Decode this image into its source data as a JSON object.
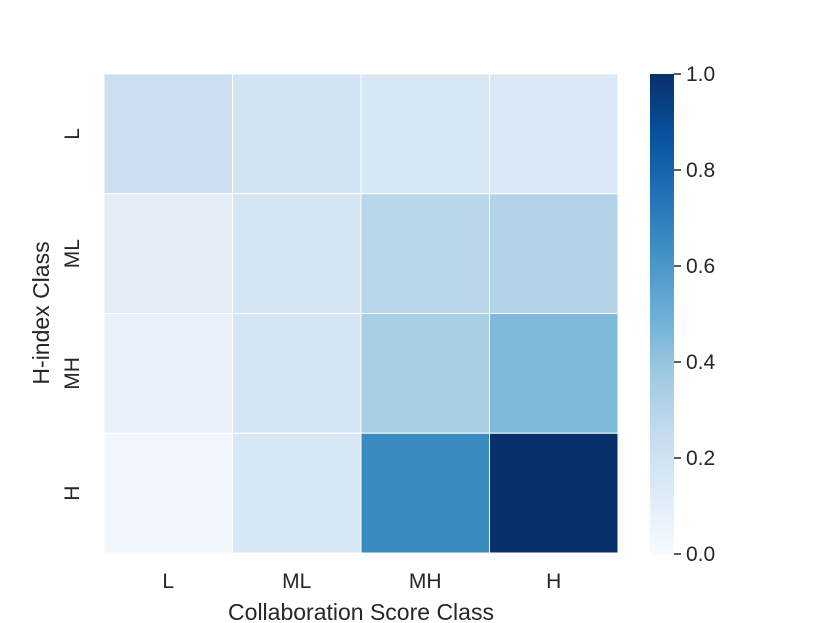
{
  "chart_data": {
    "type": "heatmap",
    "xlabel": "Collaboration Score Class",
    "ylabel": "H-index Class",
    "x_categories": [
      "L",
      "ML",
      "MH",
      "H"
    ],
    "y_categories": [
      "L",
      "ML",
      "MH",
      "H"
    ],
    "values": [
      [
        0.22,
        0.19,
        0.15,
        0.14
      ],
      [
        0.1,
        0.17,
        0.29,
        0.31
      ],
      [
        0.07,
        0.17,
        0.34,
        0.45
      ],
      [
        0.03,
        0.16,
        0.65,
        1.0
      ]
    ],
    "colorbar": {
      "colormap": "Blues",
      "range": [
        0.0,
        1.0
      ],
      "ticks": [
        "0.0",
        "0.2",
        "0.4",
        "0.6",
        "0.8",
        "1.0"
      ]
    },
    "grid": true,
    "cell_border_color": "#ffffff"
  }
}
